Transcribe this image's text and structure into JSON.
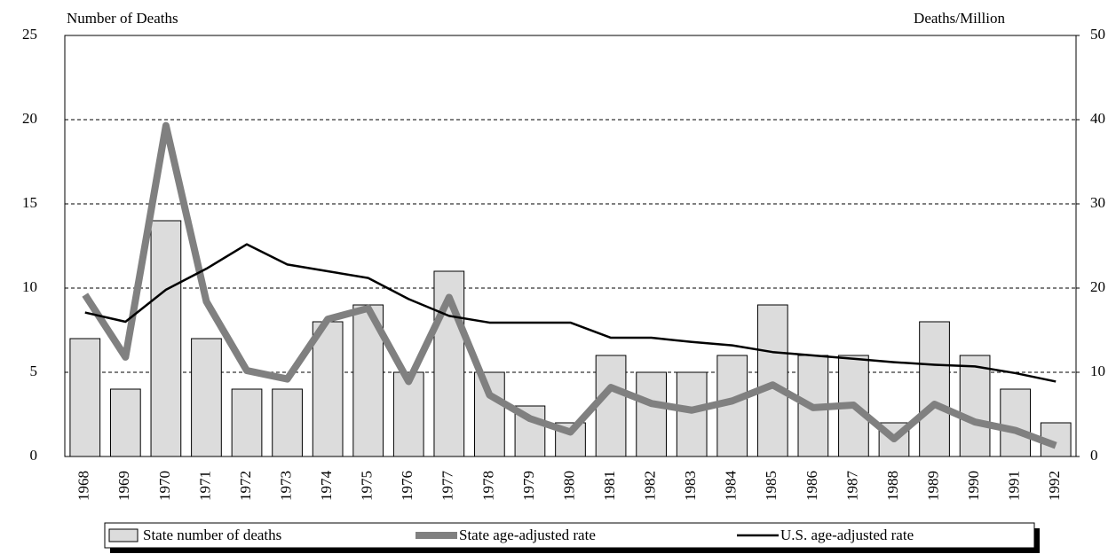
{
  "chart_data": {
    "type": "bar",
    "y_label": "Number of Deaths",
    "y2_label": "Deaths/Million",
    "categories": [
      "1968",
      "1969",
      "1970",
      "1971",
      "1972",
      "1973",
      "1974",
      "1975",
      "1976",
      "1977",
      "1978",
      "1979",
      "1980",
      "1981",
      "1982",
      "1983",
      "1984",
      "1985",
      "1986",
      "1987",
      "1988",
      "1989",
      "1990",
      "1991",
      "1992"
    ],
    "series": [
      {
        "name": "State number of deaths",
        "type": "bar",
        "color": "#dcdcdc",
        "values": [
          7,
          4,
          14,
          7,
          4,
          4,
          8,
          9,
          5,
          11,
          5,
          3,
          2,
          6,
          5,
          5,
          6,
          9,
          6,
          6,
          2,
          8,
          6,
          4,
          2
        ]
      },
      {
        "name": "State age-adjusted rate",
        "type": "line",
        "axis": "y2",
        "color": "#808080",
        "values": [
          19.2,
          11.8,
          39.3,
          18.4,
          10.2,
          9.2,
          16.3,
          17.6,
          8.9,
          18.9,
          7.3,
          4.5,
          2.9,
          8.2,
          6.3,
          5.5,
          6.6,
          8.5,
          5.8,
          6.1,
          2.1,
          6.2,
          4.1,
          3.1,
          1.3
        ]
      },
      {
        "name": "U.S. age-adjusted rate",
        "type": "line",
        "axis": "y2",
        "color": "#000000",
        "values": [
          17.1,
          16.0,
          19.8,
          22.3,
          25.2,
          22.8,
          22.0,
          21.2,
          18.7,
          16.7,
          15.9,
          15.9,
          15.9,
          14.1,
          14.1,
          13.6,
          13.2,
          12.4,
          12.0,
          11.6,
          11.2,
          10.9,
          10.7,
          9.9,
          8.9
        ]
      }
    ],
    "ylim": [
      0,
      25
    ],
    "yticks": [
      0,
      5,
      10,
      15,
      20,
      25
    ],
    "y2lim": [
      0,
      50
    ],
    "y2ticks": [
      0,
      10,
      20,
      30,
      40,
      50
    ],
    "grid": true,
    "legend": "bottom"
  }
}
